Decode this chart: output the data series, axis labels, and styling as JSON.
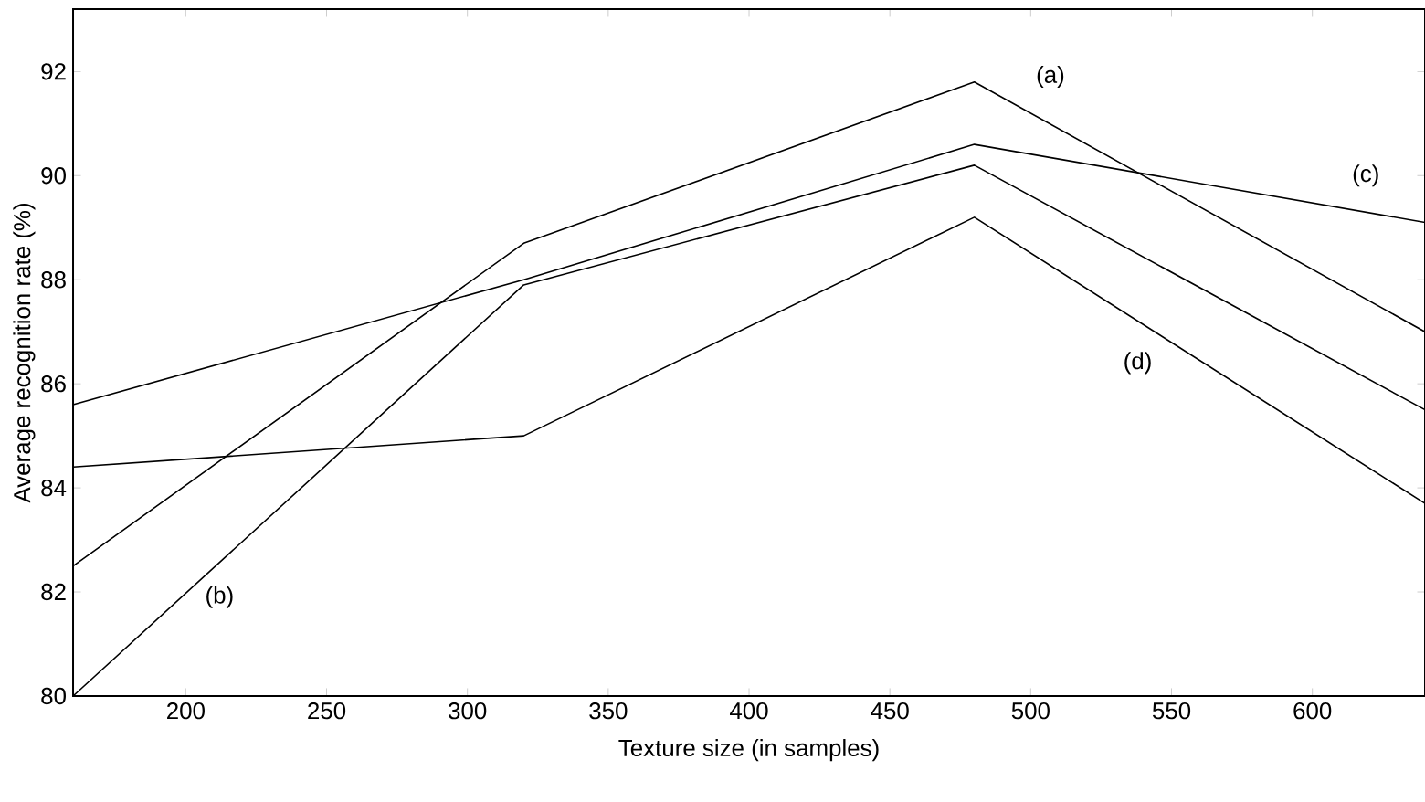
{
  "chart_data": {
    "type": "line",
    "xlabel": "Texture size (in samples)",
    "ylabel": "Average recognition rate (%)",
    "x": [
      160,
      320,
      480,
      640
    ],
    "series": [
      {
        "name": "(a)",
        "color": "#000000",
        "values": [
          82.5,
          88.7,
          91.8,
          87.0
        ]
      },
      {
        "name": "(b)",
        "color": "#000000",
        "values": [
          80.0,
          87.9,
          90.2,
          85.5
        ]
      },
      {
        "name": "(c)",
        "color": "#000000",
        "values": [
          85.6,
          88.0,
          90.6,
          89.1
        ]
      },
      {
        "name": "(d)",
        "color": "#000000",
        "values": [
          84.4,
          85.0,
          89.2,
          83.7
        ]
      }
    ],
    "xlim": [
      160,
      640
    ],
    "ylim": [
      80,
      93.2
    ],
    "xticks": [
      200,
      250,
      300,
      350,
      400,
      450,
      500,
      550,
      600
    ],
    "yticks": [
      80,
      82,
      84,
      86,
      88,
      90,
      92
    ],
    "grid": false,
    "legend": false,
    "marker": "none",
    "line_style": "solid"
  }
}
